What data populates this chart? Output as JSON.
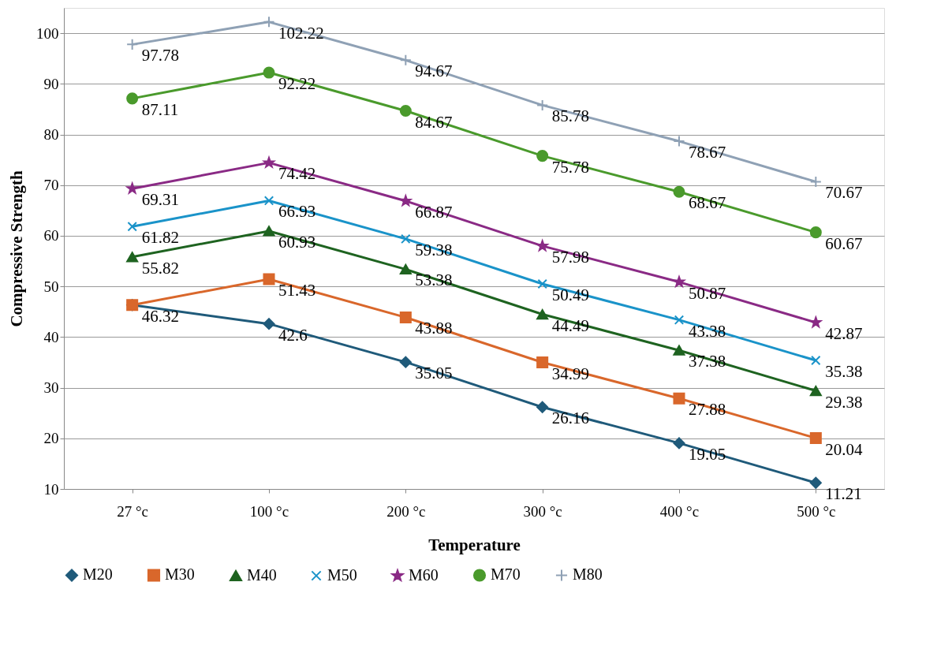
{
  "chart_data": {
    "type": "line",
    "xlabel": "Temperature",
    "ylabel": "Compressive Strength",
    "categories": [
      "27 °c",
      "100 °c",
      "200 °c",
      "300 °c",
      "400 °c",
      "500 °c"
    ],
    "series": [
      {
        "name": "M20",
        "color": "#1f5a7a",
        "marker": "diamond",
        "values": [
          46.32,
          42.6,
          35.05,
          26.16,
          19.05,
          11.21
        ]
      },
      {
        "name": "M30",
        "color": "#d9672b",
        "marker": "square",
        "values": [
          46.32,
          51.43,
          43.88,
          34.99,
          27.88,
          20.04
        ],
        "value_labels": [
          null,
          "51.43",
          "43.88",
          "34.99",
          "27.88",
          "20.04"
        ]
      },
      {
        "name": "M40",
        "color": "#1e6320",
        "marker": "triangle",
        "values": [
          55.82,
          60.93,
          53.38,
          44.49,
          37.38,
          29.38
        ]
      },
      {
        "name": "M50",
        "color": "#1a93c9",
        "marker": "x",
        "values": [
          61.82,
          66.93,
          59.38,
          50.49,
          43.38,
          35.38
        ]
      },
      {
        "name": "M60",
        "color": "#8a2a85",
        "marker": "star",
        "values": [
          69.31,
          74.42,
          66.87,
          57.98,
          50.87,
          42.87
        ]
      },
      {
        "name": "M70",
        "color": "#4a9a2c",
        "marker": "circle",
        "values": [
          87.11,
          92.22,
          84.67,
          75.78,
          68.67,
          60.67
        ]
      },
      {
        "name": "M80",
        "color": "#8fa1b5",
        "marker": "cross",
        "values": [
          97.78,
          102.22,
          94.67,
          85.78,
          78.67,
          70.67
        ]
      }
    ],
    "ylim": [
      10,
      105
    ],
    "yticks": [
      10,
      20,
      30,
      40,
      50,
      60,
      70,
      80,
      90,
      100
    ],
    "grid": "y",
    "legend": "bottom",
    "data_labels": true,
    "line_style": "solid"
  }
}
